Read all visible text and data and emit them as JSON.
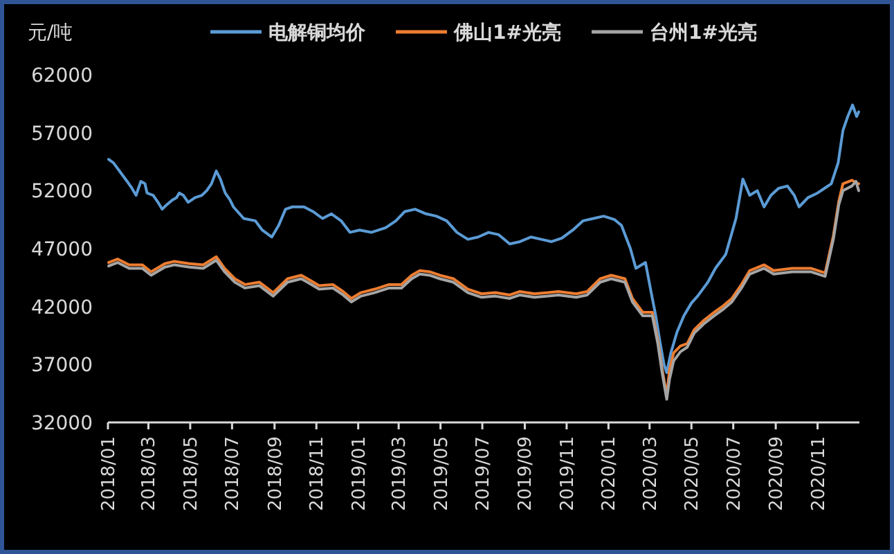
{
  "chart_data": {
    "type": "line",
    "ylabel": "元/吨",
    "legend": "top",
    "xlim": [
      "2018-01-01",
      "2021-01-01"
    ],
    "xticks": [
      {
        "value": "2018-01",
        "label": "2018/01"
      },
      {
        "value": "2018-03",
        "label": "2018/03"
      },
      {
        "value": "2018-05",
        "label": "2018/05"
      },
      {
        "value": "2018-07",
        "label": "2018/07"
      },
      {
        "value": "2018-09",
        "label": "2018/09"
      },
      {
        "value": "2018-11",
        "label": "2018/11"
      },
      {
        "value": "2019-01",
        "label": "2019/01"
      },
      {
        "value": "2019-03",
        "label": "2019/03"
      },
      {
        "value": "2019-05",
        "label": "2019/05"
      },
      {
        "value": "2019-07",
        "label": "2019/07"
      },
      {
        "value": "2019-09",
        "label": "2019/09"
      },
      {
        "value": "2019-11",
        "label": "2019/11"
      },
      {
        "value": "2020-01",
        "label": "2020/01"
      },
      {
        "value": "2020-03",
        "label": "2020/03"
      },
      {
        "value": "2020-05",
        "label": "2020/05"
      },
      {
        "value": "2020-07",
        "label": "2020/07"
      },
      {
        "value": "2020-09",
        "label": "2020/09"
      },
      {
        "value": "2020-11",
        "label": "2020/11"
      }
    ],
    "ylim": [
      32000,
      62000
    ],
    "yticks": [
      32000,
      37000,
      42000,
      47000,
      52000,
      57000,
      62000
    ],
    "series": [
      {
        "name": "电解铜均价",
        "color": "#5b9bd5",
        "x": [
          "2018-01-02",
          "2018-01-09",
          "2018-01-19",
          "2018-01-29",
          "2018-02-05",
          "2018-02-11",
          "2018-02-18",
          "2018-02-24",
          "2018-02-27",
          "2018-03-08",
          "2018-03-15",
          "2018-03-21",
          "2018-03-28",
          "2018-04-05",
          "2018-04-11",
          "2018-04-15",
          "2018-04-21",
          "2018-04-28",
          "2018-05-08",
          "2018-05-18",
          "2018-05-25",
          "2018-06-01",
          "2018-06-08",
          "2018-06-14",
          "2018-06-21",
          "2018-06-28",
          "2018-07-03",
          "2018-07-18",
          "2018-08-04",
          "2018-08-14",
          "2018-08-28",
          "2018-09-07",
          "2018-09-17",
          "2018-09-27",
          "2018-10-14",
          "2018-10-27",
          "2018-11-10",
          "2018-11-23",
          "2018-12-07",
          "2018-12-20",
          "2019-01-03",
          "2019-01-20",
          "2019-02-10",
          "2019-02-25",
          "2019-03-10",
          "2019-03-25",
          "2019-04-10",
          "2019-04-25",
          "2019-05-10",
          "2019-05-25",
          "2019-06-10",
          "2019-06-25",
          "2019-07-10",
          "2019-07-25",
          "2019-08-10",
          "2019-08-25",
          "2019-09-10",
          "2019-09-25",
          "2019-10-10",
          "2019-10-25",
          "2019-11-10",
          "2019-11-25",
          "2019-12-10",
          "2019-12-25",
          "2020-01-10",
          "2020-01-20",
          "2020-02-02",
          "2020-02-10",
          "2020-02-24",
          "2020-03-04",
          "2020-03-10",
          "2020-03-16",
          "2020-03-22",
          "2020-03-26",
          "2020-04-01",
          "2020-04-05",
          "2020-04-10",
          "2020-04-20",
          "2020-05-01",
          "2020-05-10",
          "2020-05-25",
          "2020-06-05",
          "2020-06-20",
          "2020-07-05",
          "2020-07-15",
          "2020-07-25",
          "2020-08-05",
          "2020-08-15",
          "2020-08-25",
          "2020-09-05",
          "2020-09-18",
          "2020-09-28",
          "2020-10-05",
          "2020-10-18",
          "2020-11-01",
          "2020-11-11",
          "2020-11-21",
          "2020-12-01",
          "2020-12-08",
          "2020-12-15",
          "2020-12-22",
          "2020-12-28",
          "2020-12-31"
        ],
        "values": [
          54700,
          54400,
          53600,
          52800,
          52200,
          51600,
          52800,
          52600,
          51800,
          51600,
          51000,
          50400,
          50800,
          51200,
          51400,
          51800,
          51600,
          51000,
          51400,
          51600,
          52000,
          52600,
          53700,
          53000,
          51800,
          51200,
          50600,
          49600,
          49400,
          48600,
          48000,
          49000,
          50400,
          50600,
          50600,
          50200,
          49600,
          50000,
          49400,
          48400,
          48600,
          48400,
          48800,
          49400,
          50200,
          50400,
          50000,
          49800,
          49400,
          48400,
          47800,
          48000,
          48400,
          48200,
          47400,
          47600,
          48000,
          47800,
          47600,
          47900,
          48600,
          49400,
          49600,
          49800,
          49500,
          49000,
          47000,
          45300,
          45800,
          43000,
          41200,
          39000,
          37000,
          36300,
          38000,
          38800,
          39800,
          41200,
          42300,
          42900,
          44100,
          45300,
          46500,
          49600,
          53000,
          51600,
          52000,
          50600,
          51600,
          52200,
          52400,
          51600,
          50600,
          51400,
          51800,
          52200,
          52600,
          54400,
          57200,
          58400,
          59400,
          58400,
          58800
        ]
      },
      {
        "name": "佛山1#光亮",
        "color": "#ed7d31",
        "x": [
          "2018-01-02",
          "2018-01-15",
          "2018-02-01",
          "2018-02-20",
          "2018-03-05",
          "2018-03-25",
          "2018-04-08",
          "2018-04-30",
          "2018-05-20",
          "2018-06-08",
          "2018-06-20",
          "2018-07-05",
          "2018-07-20",
          "2018-08-10",
          "2018-08-30",
          "2018-09-20",
          "2018-10-10",
          "2018-10-22",
          "2018-11-05",
          "2018-11-25",
          "2018-12-10",
          "2018-12-22",
          "2019-01-05",
          "2019-01-25",
          "2019-02-15",
          "2019-03-05",
          "2019-03-20",
          "2019-04-01",
          "2019-04-15",
          "2019-04-30",
          "2019-05-20",
          "2019-06-10",
          "2019-06-30",
          "2019-07-20",
          "2019-08-10",
          "2019-08-25",
          "2019-09-15",
          "2019-10-05",
          "2019-10-20",
          "2019-11-15",
          "2019-12-01",
          "2019-12-20",
          "2020-01-05",
          "2020-01-25",
          "2020-02-05",
          "2020-02-20",
          "2020-03-05",
          "2020-03-13",
          "2020-03-19",
          "2020-03-26",
          "2020-03-30",
          "2020-04-05",
          "2020-04-15",
          "2020-04-25",
          "2020-05-05",
          "2020-05-19",
          "2020-06-03",
          "2020-06-15",
          "2020-06-29",
          "2020-07-13",
          "2020-07-25",
          "2020-08-15",
          "2020-08-29",
          "2020-09-25",
          "2020-10-22",
          "2020-11-12",
          "2020-11-24",
          "2020-12-02",
          "2020-12-08",
          "2020-12-21",
          "2020-12-27",
          "2020-12-31"
        ],
        "values": [
          45800,
          46100,
          45600,
          45600,
          45000,
          45700,
          45900,
          45700,
          45600,
          46300,
          45300,
          44400,
          43900,
          44100,
          43200,
          44400,
          44700,
          44300,
          43800,
          43900,
          43300,
          42700,
          43200,
          43500,
          43900,
          43900,
          44700,
          45100,
          45000,
          44700,
          44400,
          43500,
          43100,
          43200,
          43000,
          43300,
          43100,
          43200,
          43300,
          43100,
          43300,
          44400,
          44700,
          44400,
          42700,
          41500,
          41500,
          39100,
          36700,
          34300,
          36500,
          38000,
          38600,
          38800,
          40000,
          40800,
          41500,
          42000,
          42700,
          43900,
          45100,
          45600,
          45100,
          45300,
          45300,
          44900,
          48100,
          51100,
          52600,
          52900,
          52700,
          52600
        ]
      },
      {
        "name": "台州1#光亮",
        "color": "#a5a5a5",
        "x": [
          "2018-01-02",
          "2018-01-15",
          "2018-02-01",
          "2018-02-20",
          "2018-03-05",
          "2018-03-25",
          "2018-04-08",
          "2018-04-30",
          "2018-05-20",
          "2018-06-08",
          "2018-06-20",
          "2018-07-05",
          "2018-07-20",
          "2018-08-10",
          "2018-08-30",
          "2018-09-20",
          "2018-10-10",
          "2018-10-22",
          "2018-11-05",
          "2018-11-25",
          "2018-12-10",
          "2018-12-22",
          "2019-01-05",
          "2019-01-25",
          "2019-02-15",
          "2019-03-05",
          "2019-03-20",
          "2019-04-01",
          "2019-04-15",
          "2019-04-30",
          "2019-05-20",
          "2019-06-10",
          "2019-06-30",
          "2019-07-20",
          "2019-08-10",
          "2019-08-25",
          "2019-09-15",
          "2019-10-05",
          "2019-10-20",
          "2019-11-15",
          "2019-12-01",
          "2019-12-20",
          "2020-01-05",
          "2020-01-25",
          "2020-02-05",
          "2020-02-20",
          "2020-03-05",
          "2020-03-13",
          "2020-03-19",
          "2020-03-26",
          "2020-03-30",
          "2020-04-05",
          "2020-04-15",
          "2020-04-25",
          "2020-05-05",
          "2020-05-19",
          "2020-06-03",
          "2020-06-15",
          "2020-06-29",
          "2020-07-13",
          "2020-07-25",
          "2020-08-15",
          "2020-08-29",
          "2020-09-25",
          "2020-10-22",
          "2020-11-12",
          "2020-11-24",
          "2020-12-02",
          "2020-12-08",
          "2020-12-21",
          "2020-12-27",
          "2020-12-31"
        ],
        "values": [
          45500,
          45800,
          45300,
          45300,
          44700,
          45400,
          45600,
          45400,
          45300,
          46000,
          45000,
          44100,
          43600,
          43800,
          42900,
          44100,
          44400,
          44000,
          43500,
          43600,
          43000,
          42400,
          42900,
          43200,
          43600,
          43600,
          44400,
          44800,
          44700,
          44400,
          44100,
          43200,
          42800,
          42900,
          42700,
          43000,
          42800,
          42900,
          43000,
          42800,
          43000,
          44100,
          44400,
          44100,
          42400,
          41200,
          41200,
          38800,
          36400,
          34000,
          35700,
          37300,
          38100,
          38500,
          39700,
          40500,
          41200,
          41700,
          42400,
          43600,
          44800,
          45300,
          44800,
          45000,
          45000,
          44600,
          47800,
          50800,
          52000,
          52400,
          52800,
          52000
        ]
      }
    ]
  }
}
